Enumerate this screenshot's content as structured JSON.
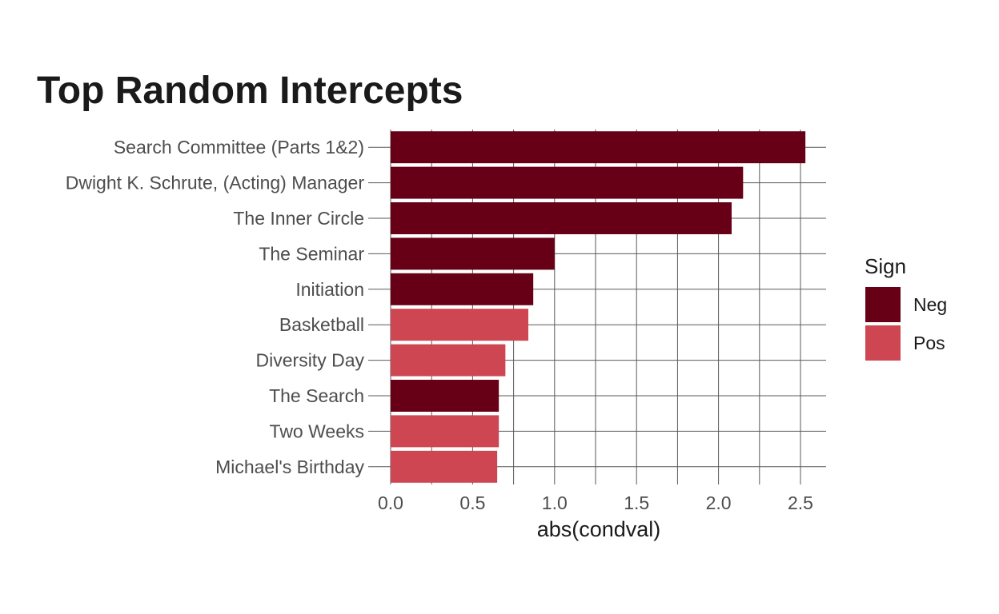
{
  "chart_data": {
    "type": "bar",
    "orientation": "horizontal",
    "title": "Top Random Intercepts",
    "xlabel": "abs(condval)",
    "ylabel": "",
    "xlim": [
      0,
      2.65
    ],
    "x_ticks": [
      "0.0",
      "0.5",
      "1.0",
      "1.5",
      "2.0",
      "2.5"
    ],
    "grid": true,
    "categories": [
      "Search Committee (Parts 1&2)",
      "Dwight K. Schrute, (Acting) Manager",
      "The Inner Circle",
      "The Seminar",
      "Initiation",
      "Basketball",
      "Diversity Day",
      "The Search",
      "Two Weeks",
      "Michael's Birthday"
    ],
    "values": [
      2.53,
      2.15,
      2.08,
      1.0,
      0.87,
      0.84,
      0.7,
      0.66,
      0.66,
      0.65
    ],
    "sign": [
      "Neg",
      "Neg",
      "Neg",
      "Neg",
      "Neg",
      "Pos",
      "Pos",
      "Neg",
      "Pos",
      "Pos"
    ],
    "legend": {
      "title": "Sign",
      "placement": "right",
      "entries": [
        {
          "label": "Neg",
          "color": "#670016"
        },
        {
          "label": "Pos",
          "color": "#cd4651"
        }
      ]
    }
  }
}
